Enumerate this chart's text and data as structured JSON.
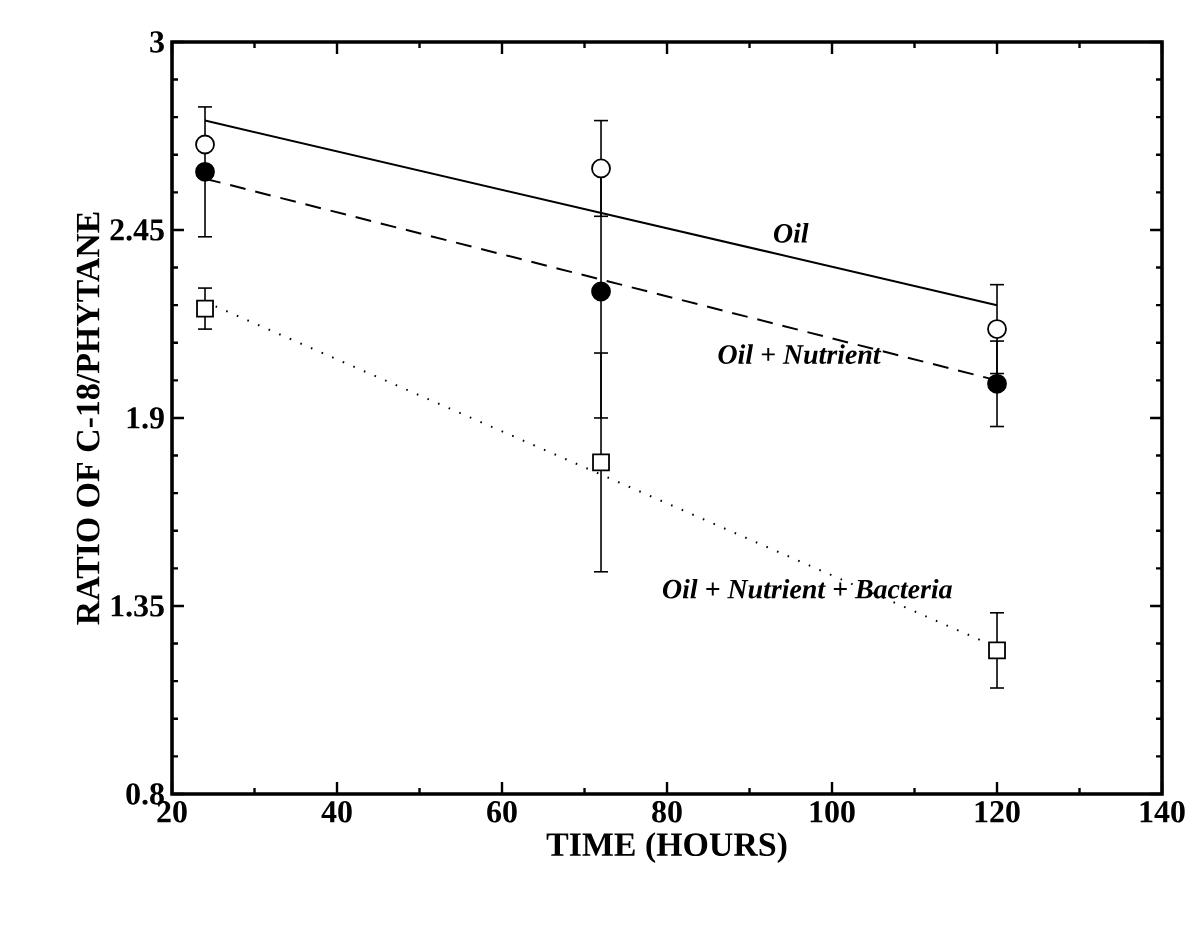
{
  "chart_data": {
    "type": "scatter",
    "xlabel": "TIME (HOURS)",
    "ylabel": "RATIO OF C-18/PHYTANE",
    "xlim": [
      20,
      140
    ],
    "xticks": [
      20,
      40,
      60,
      80,
      100,
      120,
      140
    ],
    "ylim": [
      0.8,
      3
    ],
    "yticks": [
      0.8,
      1.35,
      1.9,
      2.45,
      3
    ],
    "series": [
      {
        "marker": "circle",
        "color": "#000000",
        "x": [
          24,
          72,
          120
        ],
        "values": [
          2.7,
          2.63,
          2.16
        ],
        "errors": [
          null,
          0.14,
          0.13
        ]
      },
      {
        "marker": "circle",
        "color": "#000000",
        "x": [
          24,
          72,
          120
        ],
        "values": [
          2.62,
          2.27,
          2.0
        ],
        "errors": [
          0.19,
          0.37,
          0.125
        ]
      },
      {
        "marker": "square",
        "color": "#000000",
        "x": [
          24,
          72,
          120
        ],
        "values": [
          2.22,
          1.77,
          1.22
        ],
        "errors": [
          0.06,
          0.32,
          0.11
        ]
      },
      {
        "name": "Oil",
        "type": "line",
        "line_style": "solid",
        "marker": "none",
        "color": "#000000",
        "x": [
          24,
          120
        ],
        "values": [
          2.77,
          2.23
        ]
      },
      {
        "name": "Oil + Nutrient",
        "type": "line",
        "line_style": "dashed",
        "marker": "none",
        "color": "#000000",
        "x": [
          24,
          120
        ],
        "values": [
          2.6,
          2.01
        ]
      },
      {
        "name": "Oil + Nutrient + Bacteria",
        "type": "line",
        "line_style": "dotted",
        "marker": "none",
        "color": "#000000",
        "x": [
          24,
          118
        ],
        "values": [
          2.24,
          1.25
        ]
      }
    ]
  }
}
